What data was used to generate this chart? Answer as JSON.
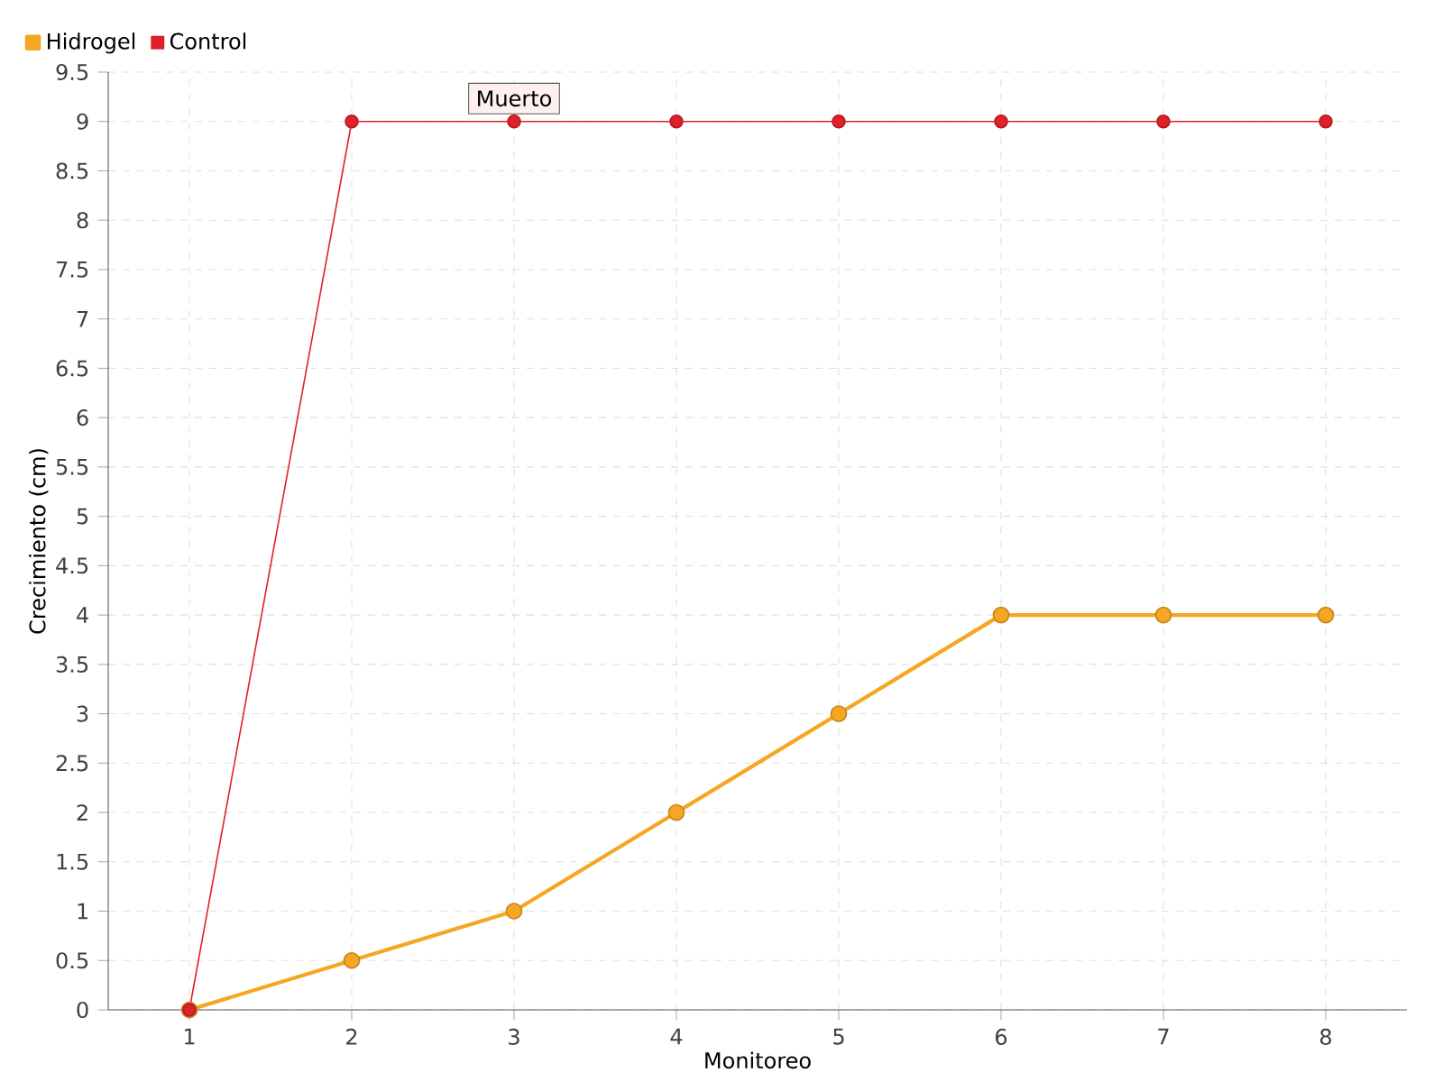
{
  "chart_data": {
    "type": "line",
    "xlabel": "Monitoreo",
    "ylabel": "Crecimiento (cm)",
    "x": [
      1,
      2,
      3,
      4,
      5,
      6,
      7,
      8
    ],
    "series": [
      {
        "name": "Hidrogel",
        "color": "#f5a623",
        "values": [
          0,
          0.5,
          1,
          2,
          3,
          4,
          4,
          4
        ]
      },
      {
        "name": "Control",
        "color": "#e0202a",
        "values": [
          0,
          9,
          9,
          9,
          9,
          9,
          9,
          9
        ]
      }
    ],
    "xlim": [
      0.5,
      8.5
    ],
    "ylim": [
      0,
      9.5
    ],
    "xticks": [
      1,
      2,
      3,
      4,
      5,
      6,
      7,
      8
    ],
    "yticks": [
      0,
      0.5,
      1,
      1.5,
      2,
      2.5,
      3,
      3.5,
      4,
      4.5,
      5,
      5.5,
      6,
      6.5,
      7,
      7.5,
      8,
      8.5,
      9,
      9.5
    ],
    "annotations": [
      {
        "text": "Muerto",
        "x": 3,
        "y": 9
      }
    ],
    "grid": true,
    "legend": "top left",
    "marker": "circle",
    "line_style": "solid"
  }
}
